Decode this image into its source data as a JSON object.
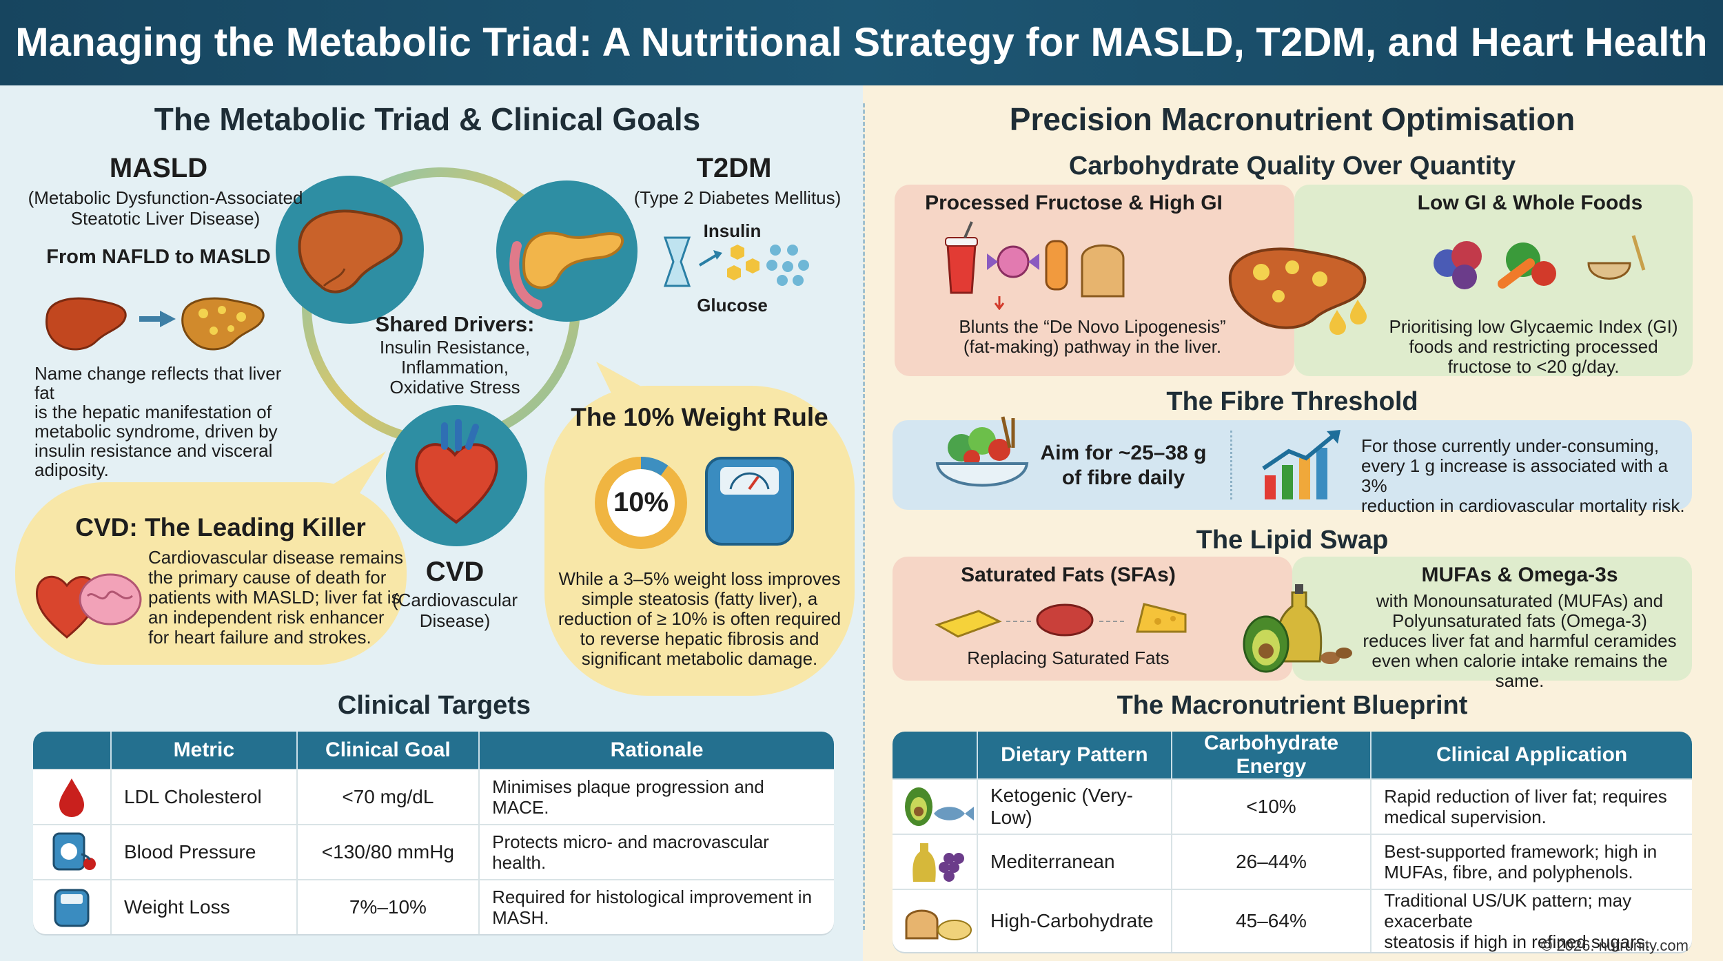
{
  "header": {
    "title": "Managing the Metabolic Triad: A Nutritional Strategy for MASLD, T2DM, and Heart Health"
  },
  "left": {
    "title": "The Metabolic Triad & Clinical Goals",
    "masld": {
      "name": "MASLD",
      "full1": "(Metabolic Dysfunction-Associated",
      "full2": "Steatotic Liver Disease)",
      "subtitle": "From NAFLD to MASLD",
      "desc": [
        "Name change reflects that liver fat",
        "is the hepatic manifestation of",
        "metabolic syndrome, driven by",
        "insulin resistance and visceral",
        "adiposity."
      ]
    },
    "t2dm": {
      "name": "T2DM",
      "full": "(Type 2 Diabetes Mellitus)",
      "insulin": "Insulin",
      "glucose": "Glucose"
    },
    "shared": {
      "title": "Shared Drivers:",
      "lines": [
        "Insulin Resistance,",
        "Inflammation,",
        "Oxidative Stress"
      ]
    },
    "cvd": {
      "name": "CVD",
      "full1": "(Cardiovascular",
      "full2": "Disease)"
    },
    "cvd_bubble": {
      "title": "CVD: The Leading Killer",
      "lines": [
        "Cardiovascular disease remains",
        "the primary cause of death for",
        "patients with MASLD; liver fat is",
        "an independent risk enhancer",
        "for heart failure and strokes."
      ]
    },
    "weight_rule": {
      "title": "The 10% Weight Rule",
      "percent": "10%",
      "percent_value": 0.1,
      "lines": [
        "While a 3–5% weight loss improves",
        "simple steatosis (fatty liver), a",
        "reduction of ≥ 10% is often required",
        "to reverse hepatic fibrosis and",
        "significant metabolic damage."
      ]
    },
    "targets": {
      "title": "Clinical Targets",
      "headers": [
        "Metric",
        "Clinical Goal",
        "Rationale"
      ],
      "rows": [
        {
          "icon": "blood-drop-icon",
          "metric": "LDL Cholesterol",
          "goal": "<70 mg/dL",
          "rationale1": "Minimises plaque progression and MACE.",
          "rationale2": ""
        },
        {
          "icon": "blood-pressure-icon",
          "metric": "Blood Pressure",
          "goal": "<130/80 mmHg",
          "rationale1": "Protects micro- and macrovascular health.",
          "rationale2": ""
        },
        {
          "icon": "scale-icon",
          "metric": "Weight Loss",
          "goal": "7%–10%",
          "rationale1": "Required for histological improvement in",
          "rationale2": "MASH."
        }
      ]
    }
  },
  "right": {
    "title": "Precision Macronutrient Optimisation",
    "carb": {
      "title": "Carbohydrate Quality Over Quantity",
      "bad_title": "Processed Fructose & High GI",
      "bad_lines": [
        "Blunts the “De Novo Lipogenesis”",
        "(fat-making) pathway in the liver."
      ],
      "good_title": "Low GI & Whole Foods",
      "good_lines": [
        "Prioritising low Glycaemic Index (GI)",
        "foods and restricting processed",
        "fructose to <20 g/day."
      ]
    },
    "fibre": {
      "title": "The Fibre Threshold",
      "aim1": "Aim for ~25–38 g",
      "aim2": "of fibre daily",
      "lines": [
        "For those currently under-consuming,",
        "every 1 g increase is associated with a 3%",
        "reduction in cardiovascular mortality risk."
      ]
    },
    "lipid": {
      "title": "The Lipid Swap",
      "sfa_title": "Saturated Fats (SFAs)",
      "sfa_caption": "Replacing Saturated Fats",
      "mufa_title": "MUFAs & Omega-3s",
      "mufa_lines": [
        "with Monounsaturated (MUFAs) and",
        "Polyunsaturated fats (Omega-3)",
        "reduces liver fat and harmful ceramides",
        "even when calorie intake remains the same."
      ]
    },
    "blueprint": {
      "title": "The Macronutrient Blueprint",
      "headers": [
        "Dietary Pattern",
        "Carbohydrate Energy",
        "Clinical Application"
      ],
      "rows": [
        {
          "icon": "avocado-fish-icon",
          "pattern": "Ketogenic (Very-Low)",
          "carb": "<10%",
          "app1": "Rapid reduction of liver fat; requires",
          "app2": "medical supervision."
        },
        {
          "icon": "olive-oil-grapes-icon",
          "pattern": "Mediterranean",
          "carb": "26–44%",
          "app1": "Best-supported framework; high in",
          "app2": "MUFAs, fibre, and polyphenols."
        },
        {
          "icon": "bread-pasta-icon",
          "pattern": "High-Carbohydrate",
          "carb": "45–64%",
          "app1": "Traditional US/UK pattern; may exacerbate",
          "app2": "steatosis if high in refined sugars."
        }
      ]
    },
    "copyright": "© 2026. nutrunity.com"
  },
  "colors": {
    "header": "#17455f",
    "table_header": "#24708f",
    "bubble": "#f8e7a8",
    "bad_card": "#f6d6c6",
    "good_card": "#dfeccd",
    "fibre_card": "#d4e6f1"
  }
}
